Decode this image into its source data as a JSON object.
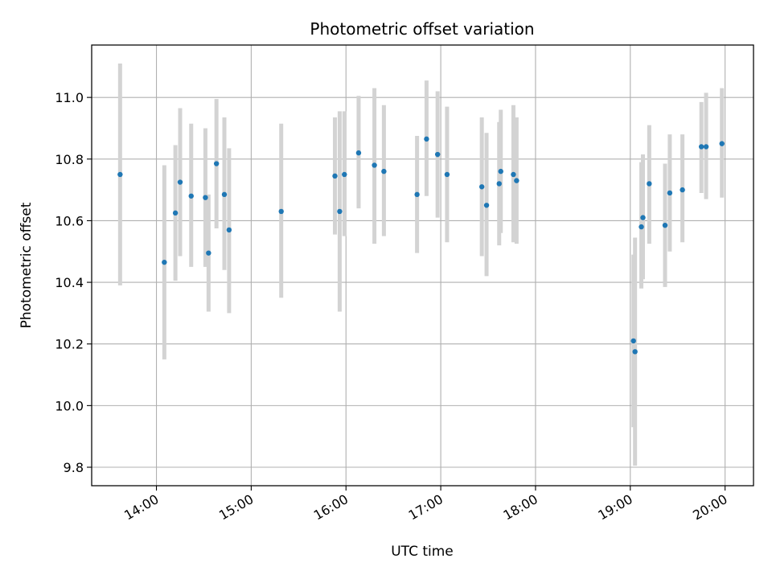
{
  "chart_data": {
    "type": "scatter",
    "title": "Photometric offset variation",
    "xlabel": "UTC time",
    "ylabel": "Photometric offset",
    "x_unit": "UTC time (HH:MM)",
    "xlim": [
      "13:19",
      "20:18"
    ],
    "ylim": [
      9.74,
      11.17
    ],
    "x_ticks": [
      "14:00",
      "15:00",
      "16:00",
      "17:00",
      "18:00",
      "19:00",
      "20:00"
    ],
    "y_ticks": [
      "9.8",
      "10.0",
      "10.2",
      "10.4",
      "10.6",
      "10.8",
      "11.0"
    ],
    "grid": true,
    "legend": "none",
    "colors": {
      "marker": "#1f77b4",
      "errorbar": "#d3d3d3",
      "grid": "#b0b0b0"
    },
    "series": [
      {
        "points": [
          {
            "x": "13:37",
            "y": 10.75,
            "ylow": 10.39,
            "yhigh": 11.11
          },
          {
            "x": "14:05",
            "y": 10.465,
            "ylow": 10.15,
            "yhigh": 10.78
          },
          {
            "x": "14:12",
            "y": 10.625,
            "ylow": 10.405,
            "yhigh": 10.845
          },
          {
            "x": "14:15",
            "y": 10.725,
            "ylow": 10.485,
            "yhigh": 10.965
          },
          {
            "x": "14:22",
            "y": 10.68,
            "ylow": 10.45,
            "yhigh": 10.915
          },
          {
            "x": "14:31",
            "y": 10.675,
            "ylow": 10.45,
            "yhigh": 10.9
          },
          {
            "x": "14:33",
            "y": 10.495,
            "ylow": 10.305,
            "yhigh": 10.685
          },
          {
            "x": "14:38",
            "y": 10.785,
            "ylow": 10.575,
            "yhigh": 10.995
          },
          {
            "x": "14:43",
            "y": 10.685,
            "ylow": 10.44,
            "yhigh": 10.935
          },
          {
            "x": "14:46",
            "y": 10.57,
            "ylow": 10.3,
            "yhigh": 10.835
          },
          {
            "x": "15:19",
            "y": 10.63,
            "ylow": 10.35,
            "yhigh": 10.915
          },
          {
            "x": "15:53",
            "y": 10.745,
            "ylow": 10.555,
            "yhigh": 10.935
          },
          {
            "x": "15:56",
            "y": 10.63,
            "ylow": 10.305,
            "yhigh": 10.955
          },
          {
            "x": "15:59",
            "y": 10.75,
            "ylow": 10.55,
            "yhigh": 10.955
          },
          {
            "x": "16:08",
            "y": 10.82,
            "ylow": 10.64,
            "yhigh": 11.005
          },
          {
            "x": "16:18",
            "y": 10.78,
            "ylow": 10.525,
            "yhigh": 11.03
          },
          {
            "x": "16:24",
            "y": 10.76,
            "ylow": 10.55,
            "yhigh": 10.975
          },
          {
            "x": "16:45",
            "y": 10.685,
            "ylow": 10.495,
            "yhigh": 10.875
          },
          {
            "x": "16:51",
            "y": 10.865,
            "ylow": 10.68,
            "yhigh": 11.055
          },
          {
            "x": "16:58",
            "y": 10.815,
            "ylow": 10.61,
            "yhigh": 11.02
          },
          {
            "x": "17:04",
            "y": 10.75,
            "ylow": 10.53,
            "yhigh": 10.97
          },
          {
            "x": "17:26",
            "y": 10.71,
            "ylow": 10.485,
            "yhigh": 10.935
          },
          {
            "x": "17:29",
            "y": 10.65,
            "ylow": 10.42,
            "yhigh": 10.885
          },
          {
            "x": "17:37",
            "y": 10.72,
            "ylow": 10.52,
            "yhigh": 10.92
          },
          {
            "x": "17:38",
            "y": 10.76,
            "ylow": 10.56,
            "yhigh": 10.96
          },
          {
            "x": "17:46",
            "y": 10.75,
            "ylow": 10.53,
            "yhigh": 10.975
          },
          {
            "x": "17:48",
            "y": 10.73,
            "ylow": 10.525,
            "yhigh": 10.935
          },
          {
            "x": "19:02",
            "y": 10.21,
            "ylow": 9.93,
            "yhigh": 10.49
          },
          {
            "x": "19:03",
            "y": 10.175,
            "ylow": 9.805,
            "yhigh": 10.545
          },
          {
            "x": "19:07",
            "y": 10.58,
            "ylow": 10.38,
            "yhigh": 10.79
          },
          {
            "x": "19:08",
            "y": 10.61,
            "ylow": 10.41,
            "yhigh": 10.815
          },
          {
            "x": "19:12",
            "y": 10.72,
            "ylow": 10.525,
            "yhigh": 10.91
          },
          {
            "x": "19:22",
            "y": 10.585,
            "ylow": 10.385,
            "yhigh": 10.785
          },
          {
            "x": "19:25",
            "y": 10.69,
            "ylow": 10.5,
            "yhigh": 10.88
          },
          {
            "x": "19:33",
            "y": 10.7,
            "ylow": 10.53,
            "yhigh": 10.88
          },
          {
            "x": "19:45",
            "y": 10.84,
            "ylow": 10.69,
            "yhigh": 10.985
          },
          {
            "x": "19:48",
            "y": 10.84,
            "ylow": 10.67,
            "yhigh": 11.015
          },
          {
            "x": "19:58",
            "y": 10.85,
            "ylow": 10.675,
            "yhigh": 11.03
          }
        ]
      }
    ]
  }
}
